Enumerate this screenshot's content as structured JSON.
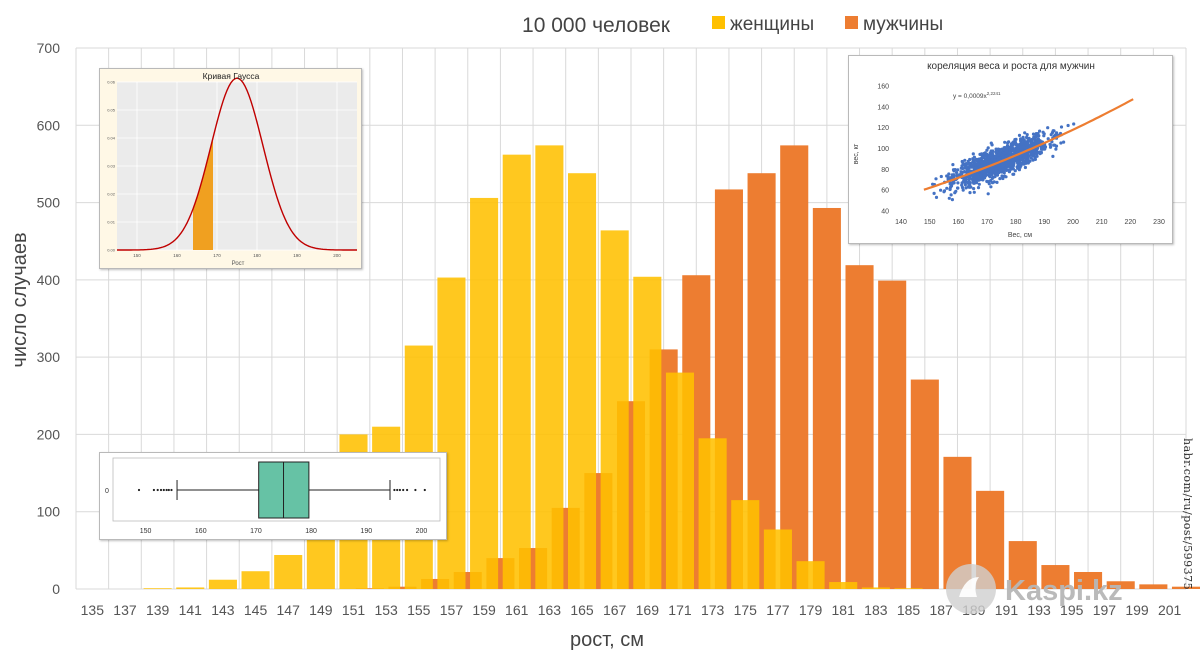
{
  "chart_data": {
    "main": {
      "type": "bar",
      "title": "10 000 человек",
      "xlabel": "рост, см",
      "ylabel": "число случаев",
      "ylim": [
        0,
        700
      ],
      "yticks": [
        0,
        100,
        200,
        300,
        400,
        500,
        600,
        700
      ],
      "grid": true,
      "legend_position": "top",
      "categories": [
        "135",
        "137",
        "139",
        "141",
        "143",
        "145",
        "147",
        "149",
        "151",
        "153",
        "155",
        "157",
        "159",
        "161",
        "163",
        "165",
        "167",
        "169",
        "171",
        "173",
        "175",
        "177",
        "179",
        "181",
        "183",
        "185",
        "187",
        "189",
        "191",
        "193",
        "195",
        "197",
        "199",
        "201"
      ],
      "series": [
        {
          "name": "женщины",
          "color": "#FFC000",
          "values": [
            0,
            0,
            1,
            2,
            12,
            23,
            44,
            95,
            200,
            210,
            315,
            403,
            506,
            562,
            574,
            538,
            464,
            404,
            280,
            195,
            115,
            77,
            36,
            9,
            2,
            1,
            0,
            0,
            0,
            0,
            0,
            0,
            0,
            0
          ]
        },
        {
          "name": "мужчины",
          "color": "#ED7D31",
          "values": [
            0,
            0,
            0,
            0,
            0,
            0,
            0,
            0,
            1,
            3,
            13,
            22,
            40,
            53,
            105,
            150,
            243,
            310,
            406,
            517,
            538,
            574,
            493,
            419,
            399,
            271,
            171,
            127,
            62,
            31,
            22,
            10,
            6,
            3
          ]
        }
      ]
    },
    "gauss_inset": {
      "type": "line",
      "title": "Кривая Гаусса",
      "xlabel": "Рост",
      "xticks": [
        "150",
        "160",
        "170",
        "180",
        "190",
        "200"
      ],
      "yticks": [
        "0.00",
        "0.01",
        "0.02",
        "0.03",
        "0.04",
        "0.05",
        "0.06"
      ],
      "mean": 175,
      "std": 6.5,
      "highlight_range": [
        164,
        169
      ]
    },
    "scatter_inset": {
      "type": "scatter",
      "title": "кореляция веса и роста для мужчин",
      "equation": "y = 0,0009x",
      "equation_exponent": "2,2241",
      "xlabel": "Вес, см",
      "ylabel": "вес, кг",
      "xlim": [
        140,
        230
      ],
      "ylim": [
        40,
        160
      ],
      "xticks": [
        "140",
        "150",
        "160",
        "170",
        "180",
        "190",
        "200",
        "210",
        "220",
        "230"
      ],
      "yticks": [
        "40",
        "60",
        "80",
        "100",
        "120",
        "140",
        "160"
      ],
      "trend_x": [
        148,
        221
      ],
      "point_color": "#4472C4",
      "trend_color": "#ED7D31"
    },
    "boxplot_inset": {
      "type": "boxplot",
      "category_label": "0",
      "xticks": [
        "150",
        "160",
        "170",
        "180",
        "190",
        "200"
      ],
      "whisker_low": 155.7,
      "q1": 170.5,
      "median": 175,
      "q3": 179.6,
      "whisker_high": 194.3,
      "outliers": [
        148.8,
        151.5,
        152.2,
        152.8,
        153.3,
        153.8,
        154.2,
        154.7,
        195.1,
        195.6,
        196.1,
        196.7,
        197.4,
        198.9,
        200.6
      ],
      "box_color": "#66C2A5"
    }
  },
  "watermark": "habr.com/ru/post/599375",
  "logo_text": "Kaspi.kz"
}
